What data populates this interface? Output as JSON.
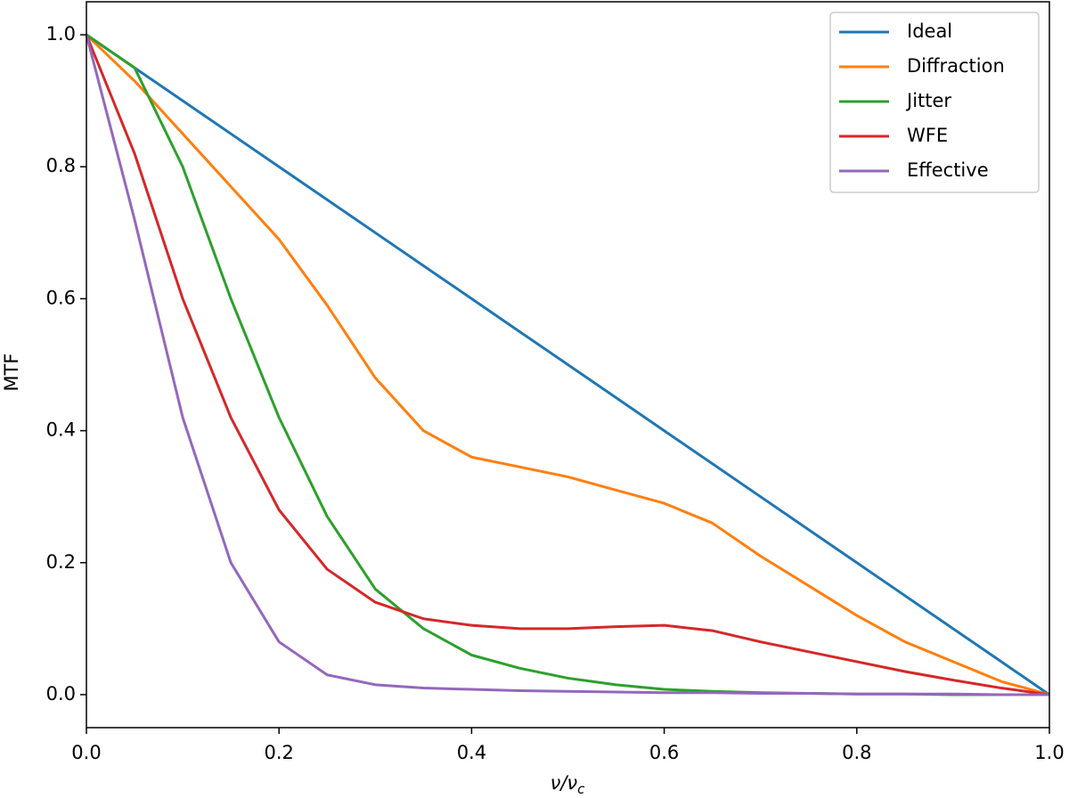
{
  "chart_data": {
    "type": "line",
    "xlabel": "ν/ν",
    "xlabel_subscript": "c",
    "ylabel": "MTF",
    "x": [
      0,
      0.05,
      0.1,
      0.15,
      0.2,
      0.25,
      0.3,
      0.35,
      0.4,
      0.45,
      0.5,
      0.55,
      0.6,
      0.65,
      0.7,
      0.75,
      0.8,
      0.85,
      0.9,
      0.95,
      1.0
    ],
    "series": [
      {
        "name": "Ideal",
        "color": "#1f77b4",
        "values": [
          1,
          0.95,
          0.9,
          0.85,
          0.8,
          0.75,
          0.7,
          0.65,
          0.6,
          0.55,
          0.5,
          0.45,
          0.4,
          0.35,
          0.3,
          0.25,
          0.2,
          0.15,
          0.1,
          0.05,
          0
        ]
      },
      {
        "name": "Diffraction",
        "color": "#ff7f0e",
        "values": [
          1,
          0.93,
          0.85,
          0.77,
          0.69,
          0.59,
          0.48,
          0.4,
          0.36,
          0.345,
          0.33,
          0.31,
          0.29,
          0.26,
          0.21,
          0.165,
          0.12,
          0.08,
          0.05,
          0.02,
          0
        ]
      },
      {
        "name": "Jitter",
        "color": "#2ca02c",
        "values": [
          1,
          0.95,
          0.8,
          0.6,
          0.42,
          0.27,
          0.16,
          0.1,
          0.06,
          0.04,
          0.025,
          0.015,
          0.008,
          0.005,
          0.003,
          0.002,
          0.001,
          0.001,
          0,
          0,
          0
        ]
      },
      {
        "name": "WFE",
        "color": "#d62728",
        "values": [
          1,
          0.82,
          0.6,
          0.42,
          0.28,
          0.19,
          0.14,
          0.115,
          0.105,
          0.1,
          0.1,
          0.103,
          0.105,
          0.097,
          0.08,
          0.065,
          0.05,
          0.035,
          0.022,
          0.01,
          0
        ]
      },
      {
        "name": "Effective",
        "color": "#9467bd",
        "values": [
          1,
          0.72,
          0.42,
          0.2,
          0.08,
          0.03,
          0.015,
          0.01,
          0.008,
          0.006,
          0.005,
          0.004,
          0.003,
          0.003,
          0.002,
          0.002,
          0.001,
          0.001,
          0.001,
          0,
          0
        ]
      }
    ],
    "xlim": [
      0,
      1
    ],
    "ylim": [
      -0.05,
      1.05
    ],
    "xticks": [
      {
        "value": 0,
        "label": "0.0"
      },
      0.2,
      0.4,
      0.6,
      0.8,
      {
        "value": 1,
        "label": "1.0"
      }
    ],
    "yticks": [
      {
        "value": 0,
        "label": "0.0"
      },
      0.2,
      0.4,
      0.6,
      0.8,
      {
        "value": 1,
        "label": "1.0"
      }
    ],
    "legend": "upper right",
    "grid": false
  }
}
